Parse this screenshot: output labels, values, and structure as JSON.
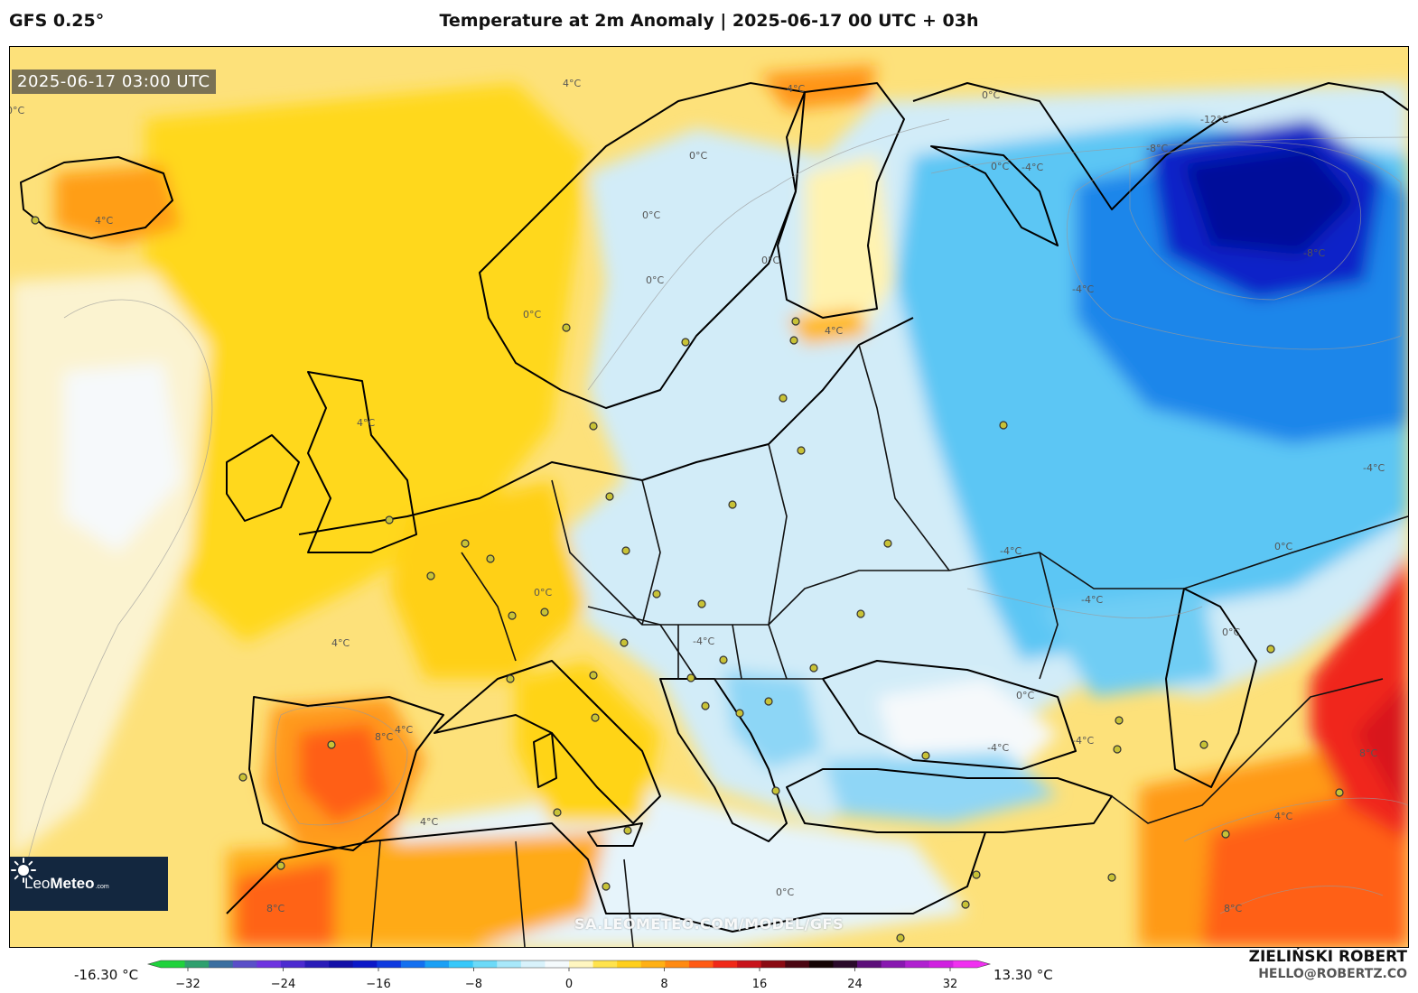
{
  "header": {
    "model": "GFS 0.25°",
    "title": "Temperature at 2m Anomaly | 2025-06-17 00 UTC + 03h"
  },
  "map": {
    "timestamp": "2025-06-17 03:00 UTC",
    "watermark": "SA.LEOMETEO.COM/MODEL/GFS",
    "logo": {
      "brand_light": "Leo",
      "brand_bold": "Meteo",
      "suffix": ".com"
    },
    "contour_labels": [
      {
        "text": "4°C"
      },
      {
        "text": "4°C"
      },
      {
        "text": "0°C"
      },
      {
        "text": "4°C"
      },
      {
        "text": "0°C"
      },
      {
        "text": "0°C"
      },
      {
        "text": "0°C"
      },
      {
        "text": "-4°C"
      },
      {
        "text": "-12°C"
      },
      {
        "text": "-8°C"
      },
      {
        "text": "-8°C"
      },
      {
        "text": "-4°C"
      },
      {
        "text": "0°C"
      },
      {
        "text": "0°C"
      },
      {
        "text": "0°C"
      },
      {
        "text": "0°C"
      },
      {
        "text": "4°C"
      },
      {
        "text": "4°C"
      },
      {
        "text": "-4°C"
      },
      {
        "text": "-4°C"
      },
      {
        "text": "0°C"
      },
      {
        "text": "0°C"
      },
      {
        "text": "-4°C"
      },
      {
        "text": "4°C"
      },
      {
        "text": "8°C"
      },
      {
        "text": "4°C"
      },
      {
        "text": "-4°C"
      },
      {
        "text": "0°C"
      },
      {
        "text": "-4°C"
      },
      {
        "text": "8°C"
      },
      {
        "text": "-4°C"
      },
      {
        "text": "4°C"
      },
      {
        "text": "8°C"
      },
      {
        "text": "0°C"
      },
      {
        "text": "4°C"
      },
      {
        "text": "8°C"
      },
      {
        "text": "0°C"
      }
    ]
  },
  "colorbar": {
    "min_label": "-16.30 °C",
    "max_label": "13.30 °C",
    "ticks": [
      "−32",
      "−24",
      "−16",
      "−8",
      "0",
      "8",
      "16",
      "24",
      "32"
    ],
    "colors": [
      "#1fd23c",
      "#2fa06e",
      "#3b6fa0",
      "#5a4fc8",
      "#6e33e0",
      "#4c2ad0",
      "#2a1cb8",
      "#1310a8",
      "#0c18c8",
      "#0f3ae0",
      "#1470f0",
      "#1aa0f5",
      "#36c8fa",
      "#6cdaf8",
      "#a8e8fa",
      "#d8f2fb",
      "#f4fafc",
      "#fff6c0",
      "#ffe34d",
      "#ffcf1c",
      "#ffb014",
      "#ff8a12",
      "#ff5a14",
      "#f02818",
      "#c8121a",
      "#8a0a12",
      "#4a0612",
      "#140404",
      "#2a0a2a",
      "#5c0f7a",
      "#8818b0",
      "#b020d0",
      "#d020e0",
      "#f030f0"
    ]
  },
  "author": {
    "name": "ZIELIŃSKI ROBERT",
    "email": "HELLO@ROBERTZ.CO"
  }
}
